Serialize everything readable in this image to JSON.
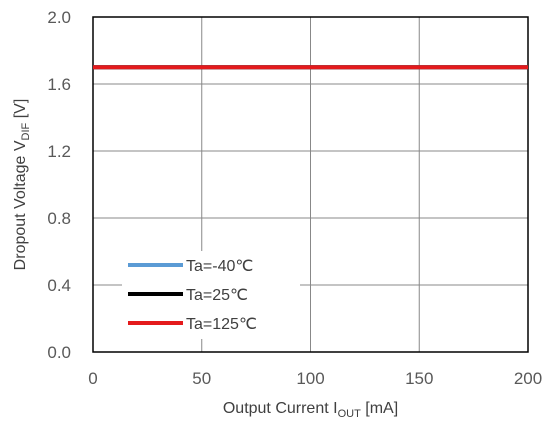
{
  "chart_data": {
    "type": "line",
    "xlabel": "Output  Current I",
    "xlabel_sub": "OUT",
    "xlabel_unit": " [mA]",
    "ylabel": "Dropout Voltage V",
    "ylabel_sub": "DIF",
    "ylabel_unit": "  [V]",
    "xlim": [
      0,
      200
    ],
    "ylim": [
      0.0,
      2.0
    ],
    "x_ticks": [
      "0",
      "50",
      "100",
      "150",
      "200"
    ],
    "y_ticks": [
      "0.0",
      "0.4",
      "0.8",
      "1.2",
      "1.6",
      "2.0"
    ],
    "grid": true,
    "legend_position": "bottom-left",
    "series": [
      {
        "name": "Ta=-40℃",
        "color": "#5b9bd5",
        "x": [
          0,
          200
        ],
        "y": [
          1.7,
          1.7
        ]
      },
      {
        "name": "Ta=25℃",
        "color": "#000000",
        "x": [
          0,
          200
        ],
        "y": [
          1.7,
          1.7
        ]
      },
      {
        "name": "Ta=125℃",
        "color": "#e41a1c",
        "x": [
          0,
          200
        ],
        "y": [
          1.7,
          1.7
        ]
      }
    ]
  }
}
